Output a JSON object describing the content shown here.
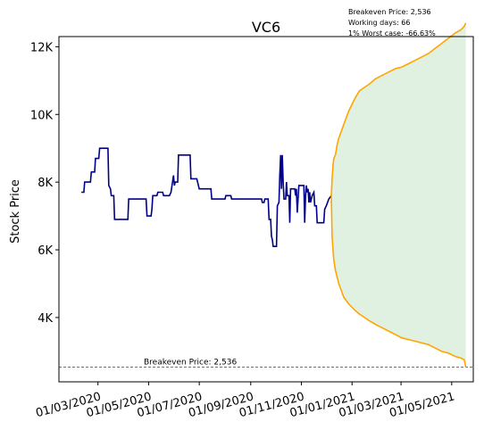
{
  "chart_data": {
    "type": "line",
    "title": "VC6",
    "ylabel": "Stock Price",
    "xlabel": "",
    "xlim": [
      "2020-01-14",
      "2021-05-27"
    ],
    "ylim": [
      2100,
      12300
    ],
    "yticks": [
      {
        "value": 4000,
        "label": "4K"
      },
      {
        "value": 6000,
        "label": "6K"
      },
      {
        "value": 8000,
        "label": "8K"
      },
      {
        "value": 10000,
        "label": "10K"
      },
      {
        "value": 12000,
        "label": "12K"
      }
    ],
    "xticks": [
      {
        "value": "2020-03-01",
        "label": "01/03/2020"
      },
      {
        "value": "2020-05-01",
        "label": "01/05/2020"
      },
      {
        "value": "2020-07-01",
        "label": "01/07/2020"
      },
      {
        "value": "2020-09-01",
        "label": "01/09/2020"
      },
      {
        "value": "2020-11-01",
        "label": "01/11/2020"
      },
      {
        "value": "2021-01-01",
        "label": "01/01/2021"
      },
      {
        "value": "2021-03-01",
        "label": "01/03/2021"
      },
      {
        "value": "2021-05-01",
        "label": "01/05/2021"
      }
    ],
    "breakeven_line": {
      "value": 2536,
      "label": "Breakeven Price: 2,536",
      "color": "#d62728"
    },
    "annotation_lines": [
      "Breakeven Price: 2,536",
      "Working days: 66",
      "1% Worst case: -66.63%"
    ],
    "price_color": "#00008b",
    "projection_color": "#ffa500",
    "band_color": "#c8e6c8",
    "price_series": [
      [
        "2020-02-10",
        7700
      ],
      [
        "2020-02-13",
        7700
      ],
      [
        "2020-02-14",
        8000
      ],
      [
        "2020-02-21",
        8000
      ],
      [
        "2020-02-22",
        8300
      ],
      [
        "2020-02-26",
        8300
      ],
      [
        "2020-02-27",
        8700
      ],
      [
        "2020-03-02",
        8700
      ],
      [
        "2020-03-03",
        9000
      ],
      [
        "2020-03-13",
        9000
      ],
      [
        "2020-03-14",
        7900
      ],
      [
        "2020-03-16",
        7800
      ],
      [
        "2020-03-17",
        7600
      ],
      [
        "2020-03-20",
        7600
      ],
      [
        "2020-03-21",
        6900
      ],
      [
        "2020-04-06",
        6900
      ],
      [
        "2020-04-07",
        7500
      ],
      [
        "2020-04-28",
        7500
      ],
      [
        "2020-04-29",
        7000
      ],
      [
        "2020-05-04",
        7000
      ],
      [
        "2020-05-05",
        7200
      ],
      [
        "2020-05-06",
        7600
      ],
      [
        "2020-05-11",
        7600
      ],
      [
        "2020-05-12",
        7700
      ],
      [
        "2020-05-18",
        7700
      ],
      [
        "2020-05-19",
        7600
      ],
      [
        "2020-05-26",
        7600
      ],
      [
        "2020-05-28",
        7700
      ],
      [
        "2020-05-31",
        8200
      ],
      [
        "2020-06-01",
        7900
      ],
      [
        "2020-06-02",
        8000
      ],
      [
        "2020-06-05",
        8000
      ],
      [
        "2020-06-06",
        8800
      ],
      [
        "2020-06-20",
        8800
      ],
      [
        "2020-06-21",
        8100
      ],
      [
        "2020-06-28",
        8100
      ],
      [
        "2020-07-01",
        7800
      ],
      [
        "2020-07-15",
        7800
      ],
      [
        "2020-07-16",
        7500
      ],
      [
        "2020-08-01",
        7500
      ],
      [
        "2020-08-02",
        7600
      ],
      [
        "2020-08-08",
        7600
      ],
      [
        "2020-08-09",
        7500
      ],
      [
        "2020-09-14",
        7500
      ],
      [
        "2020-09-15",
        7400
      ],
      [
        "2020-09-17",
        7400
      ],
      [
        "2020-09-18",
        7500
      ],
      [
        "2020-09-22",
        7500
      ],
      [
        "2020-09-23",
        6900
      ],
      [
        "2020-09-25",
        6900
      ],
      [
        "2020-09-26",
        6400
      ],
      [
        "2020-09-27",
        6300
      ],
      [
        "2020-09-28",
        6100
      ],
      [
        "2020-10-02",
        6100
      ],
      [
        "2020-10-03",
        7300
      ],
      [
        "2020-10-05",
        7400
      ],
      [
        "2020-10-06",
        8200
      ],
      [
        "2020-10-07",
        8800
      ],
      [
        "2020-10-08",
        7800
      ],
      [
        "2020-10-09",
        8800
      ],
      [
        "2020-10-10",
        8000
      ],
      [
        "2020-10-11",
        7500
      ],
      [
        "2020-10-13",
        7500
      ],
      [
        "2020-10-14",
        8000
      ],
      [
        "2020-10-15",
        7600
      ],
      [
        "2020-10-17",
        7600
      ],
      [
        "2020-10-18",
        6800
      ],
      [
        "2020-10-19",
        7800
      ],
      [
        "2020-10-24",
        7800
      ],
      [
        "2020-10-25",
        7600
      ],
      [
        "2020-10-26",
        7800
      ],
      [
        "2020-10-27",
        7100
      ],
      [
        "2020-10-29",
        7900
      ],
      [
        "2020-11-04",
        7900
      ],
      [
        "2020-11-05",
        6800
      ],
      [
        "2020-11-06",
        7600
      ],
      [
        "2020-11-07",
        7900
      ],
      [
        "2020-11-08",
        7700
      ],
      [
        "2020-11-09",
        7800
      ],
      [
        "2020-11-10",
        7400
      ],
      [
        "2020-11-11",
        7700
      ],
      [
        "2020-11-12",
        7400
      ],
      [
        "2020-11-14",
        7600
      ],
      [
        "2020-11-16",
        7700
      ],
      [
        "2020-11-17",
        7300
      ],
      [
        "2020-11-19",
        7300
      ],
      [
        "2020-11-20",
        6800
      ],
      [
        "2020-11-28",
        6800
      ],
      [
        "2020-11-29",
        7200
      ],
      [
        "2020-12-01",
        7300
      ],
      [
        "2020-12-04",
        7500
      ],
      [
        "2020-12-07",
        7600
      ]
    ],
    "projection_upper": [
      [
        "2020-12-07",
        7600
      ],
      [
        "2020-12-08",
        8100
      ],
      [
        "2020-12-09",
        8500
      ],
      [
        "2020-12-10",
        8700
      ],
      [
        "2020-12-12",
        8800
      ],
      [
        "2020-12-14",
        9100
      ],
      [
        "2020-12-16",
        9300
      ],
      [
        "2020-12-19",
        9500
      ],
      [
        "2020-12-22",
        9700
      ],
      [
        "2020-12-25",
        9900
      ],
      [
        "2020-12-28",
        10100
      ],
      [
        "2021-01-01",
        10300
      ],
      [
        "2021-01-05",
        10500
      ],
      [
        "2021-01-10",
        10700
      ],
      [
        "2021-01-16",
        10800
      ],
      [
        "2021-01-22",
        10900
      ],
      [
        "2021-01-29",
        11050
      ],
      [
        "2021-02-06",
        11150
      ],
      [
        "2021-02-14",
        11250
      ],
      [
        "2021-02-22",
        11350
      ],
      [
        "2021-03-02",
        11400
      ],
      [
        "2021-03-10",
        11500
      ],
      [
        "2021-03-18",
        11600
      ],
      [
        "2021-03-26",
        11700
      ],
      [
        "2021-04-03",
        11800
      ],
      [
        "2021-04-11",
        11950
      ],
      [
        "2021-04-19",
        12100
      ],
      [
        "2021-04-27",
        12250
      ],
      [
        "2021-05-05",
        12400
      ],
      [
        "2021-05-12",
        12500
      ],
      [
        "2021-05-16",
        12600
      ],
      [
        "2021-05-18",
        12700
      ]
    ],
    "projection_lower": [
      [
        "2020-12-07",
        7600
      ],
      [
        "2020-12-08",
        6400
      ],
      [
        "2020-12-09",
        6000
      ],
      [
        "2020-12-10",
        5700
      ],
      [
        "2020-12-12",
        5400
      ],
      [
        "2020-12-14",
        5200
      ],
      [
        "2020-12-16",
        5000
      ],
      [
        "2020-12-19",
        4800
      ],
      [
        "2020-12-22",
        4600
      ],
      [
        "2020-12-25",
        4500
      ],
      [
        "2020-12-28",
        4400
      ],
      [
        "2021-01-01",
        4300
      ],
      [
        "2021-01-05",
        4200
      ],
      [
        "2021-01-10",
        4100
      ],
      [
        "2021-01-16",
        4000
      ],
      [
        "2021-01-22",
        3900
      ],
      [
        "2021-01-29",
        3800
      ],
      [
        "2021-02-06",
        3700
      ],
      [
        "2021-02-14",
        3600
      ],
      [
        "2021-02-22",
        3500
      ],
      [
        "2021-03-02",
        3400
      ],
      [
        "2021-03-10",
        3350
      ],
      [
        "2021-03-18",
        3300
      ],
      [
        "2021-03-26",
        3250
      ],
      [
        "2021-04-03",
        3200
      ],
      [
        "2021-04-11",
        3100
      ],
      [
        "2021-04-19",
        3000
      ],
      [
        "2021-04-27",
        2950
      ],
      [
        "2021-05-05",
        2850
      ],
      [
        "2021-05-12",
        2800
      ],
      [
        "2021-05-16",
        2750
      ],
      [
        "2021-05-18",
        2536
      ]
    ]
  }
}
